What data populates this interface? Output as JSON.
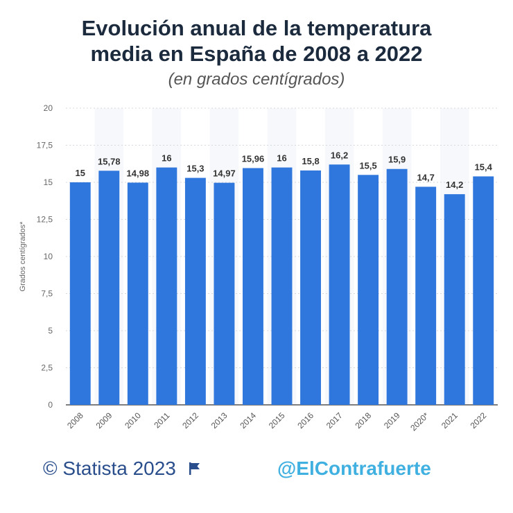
{
  "title_line1": "Evolución anual de la temperatura",
  "title_line2": "media en España de 2008 a 2022",
  "subtitle": "(en grados centígrados)",
  "footer": {
    "copyright": "© Statista 2023",
    "flag_icon": "flag-icon",
    "handle": "@ElContrafuerte"
  },
  "colors": {
    "bar": "#2f77dd",
    "title": "#1b2a3d",
    "footer_left": "#2a4e8c",
    "footer_right": "#3fb0e0"
  },
  "chart_data": {
    "type": "bar",
    "categories": [
      "2008",
      "2009",
      "2010",
      "2011",
      "2012",
      "2013",
      "2014",
      "2015",
      "2016",
      "2017",
      "2018",
      "2019",
      "2020*",
      "2021",
      "2022"
    ],
    "values": [
      15,
      15.78,
      14.98,
      16,
      15.3,
      14.97,
      15.96,
      16,
      15.8,
      16.2,
      15.5,
      15.9,
      14.7,
      14.2,
      15.4
    ],
    "value_labels": [
      "15",
      "15,78",
      "14,98",
      "16",
      "15,3",
      "14,97",
      "15,96",
      "16",
      "15,8",
      "16,2",
      "15,5",
      "15,9",
      "14,7",
      "14,2",
      "15,4"
    ],
    "ylabel": "Grados centígrados*",
    "ylim": [
      0,
      20
    ],
    "yticks": [
      0,
      2.5,
      5,
      7.5,
      10,
      12.5,
      15,
      17.5,
      20
    ],
    "ytick_labels": [
      "0",
      "2,5",
      "5",
      "7,5",
      "10",
      "12,5",
      "15",
      "17,5",
      "20"
    ],
    "grid": true
  }
}
